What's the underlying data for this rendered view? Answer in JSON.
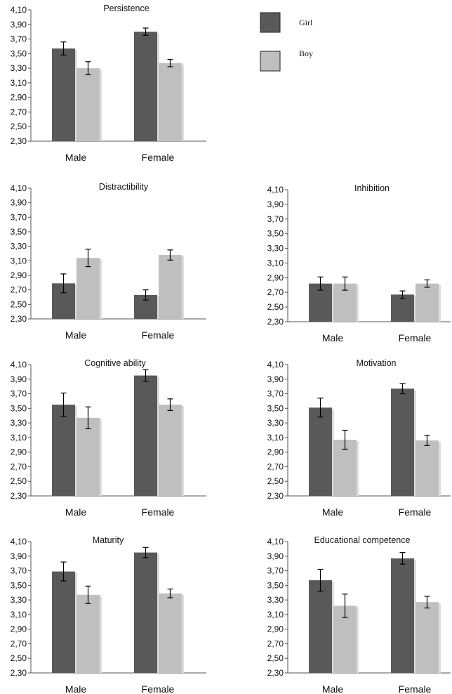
{
  "legend": {
    "entries": [
      {
        "label": "Girl",
        "color": "#595959"
      },
      {
        "label": "Boy",
        "color": "#bfbfbf"
      }
    ]
  },
  "chart_data": [
    {
      "type": "bar",
      "title": "Persistence",
      "categories": [
        "Male",
        "Female"
      ],
      "ylim": [
        2.3,
        4.1
      ],
      "yticks": [
        "2,30",
        "2,50",
        "2,70",
        "2,90",
        "3,10",
        "3,30",
        "3,50",
        "3,70",
        "3,90",
        "4,10"
      ],
      "series": [
        {
          "name": "Girl",
          "values": [
            3.57,
            3.8
          ],
          "errors": [
            0.09,
            0.05
          ]
        },
        {
          "name": "Boy",
          "values": [
            3.3,
            3.37
          ],
          "errors": [
            0.09,
            0.05
          ]
        }
      ]
    },
    {
      "type": "bar",
      "title": "Distractibility",
      "categories": [
        "Male",
        "Female"
      ],
      "ylim": [
        2.3,
        4.1
      ],
      "yticks": [
        "2,30",
        "2,50",
        "2,70",
        "2,90",
        "3,10",
        "3,30",
        "3,50",
        "3,70",
        "3,90",
        "4,10"
      ],
      "series": [
        {
          "name": "Girl",
          "values": [
            2.79,
            2.63
          ],
          "errors": [
            0.13,
            0.07
          ]
        },
        {
          "name": "Boy",
          "values": [
            3.14,
            3.18
          ],
          "errors": [
            0.12,
            0.07
          ]
        }
      ]
    },
    {
      "type": "bar",
      "title": "Inhibition",
      "categories": [
        "Male",
        "Female"
      ],
      "ylim": [
        2.3,
        4.1
      ],
      "yticks": [
        "2,30",
        "2,50",
        "2,70",
        "2,90",
        "3,10",
        "3,30",
        "3,50",
        "3,70",
        "3,90",
        "4,10"
      ],
      "series": [
        {
          "name": "Girl",
          "values": [
            2.82,
            2.67
          ],
          "errors": [
            0.09,
            0.05
          ]
        },
        {
          "name": "Boy",
          "values": [
            2.82,
            2.82
          ],
          "errors": [
            0.09,
            0.05
          ]
        }
      ]
    },
    {
      "type": "bar",
      "title": "Cognitive ability",
      "categories": [
        "Male",
        "Female"
      ],
      "ylim": [
        2.3,
        4.1
      ],
      "yticks": [
        "2,30",
        "2,50",
        "2,70",
        "2,90",
        "3,10",
        "3,30",
        "3,50",
        "3,70",
        "3,90",
        "4,10"
      ],
      "series": [
        {
          "name": "Girl",
          "values": [
            3.55,
            3.95
          ],
          "errors": [
            0.16,
            0.08
          ]
        },
        {
          "name": "Boy",
          "values": [
            3.37,
            3.55
          ],
          "errors": [
            0.15,
            0.08
          ]
        }
      ]
    },
    {
      "type": "bar",
      "title": "Motivation",
      "categories": [
        "Male",
        "Female"
      ],
      "ylim": [
        2.3,
        4.1
      ],
      "yticks": [
        "2,30",
        "2,50",
        "2,70",
        "2,90",
        "3,10",
        "3,30",
        "3,50",
        "3,70",
        "3,90",
        "4,10"
      ],
      "series": [
        {
          "name": "Girl",
          "values": [
            3.51,
            3.77
          ],
          "errors": [
            0.13,
            0.07
          ]
        },
        {
          "name": "Boy",
          "values": [
            3.07,
            3.06
          ],
          "errors": [
            0.13,
            0.07
          ]
        }
      ]
    },
    {
      "type": "bar",
      "title": "Maturity",
      "categories": [
        "Male",
        "Female"
      ],
      "ylim": [
        2.3,
        4.1
      ],
      "yticks": [
        "2,30",
        "2,50",
        "2,70",
        "2,90",
        "3,10",
        "3,30",
        "3,50",
        "3,70",
        "3,90",
        "4,10"
      ],
      "series": [
        {
          "name": "Girl",
          "values": [
            3.69,
            3.95
          ],
          "errors": [
            0.13,
            0.07
          ]
        },
        {
          "name": "Boy",
          "values": [
            3.37,
            3.39
          ],
          "errors": [
            0.12,
            0.06
          ]
        }
      ]
    },
    {
      "type": "bar",
      "title": "Educational competence",
      "categories": [
        "Male",
        "Female"
      ],
      "ylim": [
        2.3,
        4.1
      ],
      "yticks": [
        "2,30",
        "2,50",
        "2,70",
        "2,90",
        "3,10",
        "3,30",
        "3,50",
        "3,70",
        "3,90",
        "4,10"
      ],
      "series": [
        {
          "name": "Girl",
          "values": [
            3.57,
            3.87
          ],
          "errors": [
            0.15,
            0.08
          ]
        },
        {
          "name": "Boy",
          "values": [
            3.22,
            3.27
          ],
          "errors": [
            0.16,
            0.08
          ]
        }
      ]
    }
  ]
}
